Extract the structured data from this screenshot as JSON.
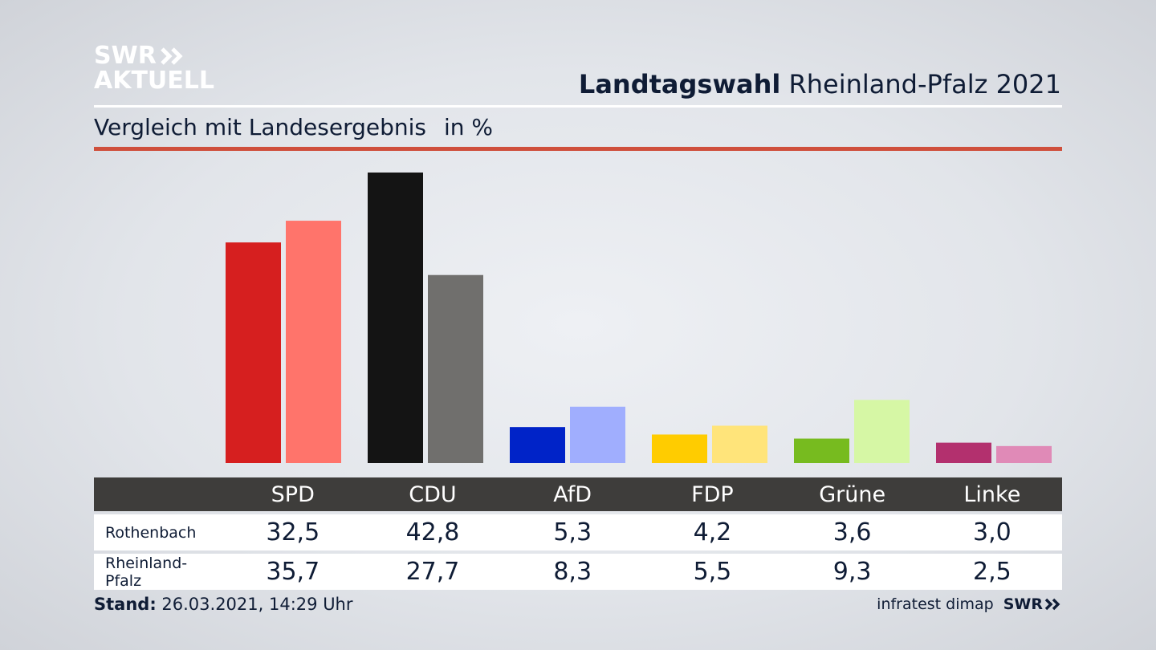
{
  "logo": {
    "line1": "SWR",
    "line2": "AKTUELL"
  },
  "header": {
    "title_bold": "Landtagswahl",
    "title_rest": "Rheinland-Pfalz 2021"
  },
  "subtitle": {
    "text": "Vergleich mit Landesergebnis",
    "unit": "in %"
  },
  "colors": {
    "accent_rule": "#cf4f3c",
    "table_header": "#3e3d3b",
    "Rothenbach": [
      "#d61f1f",
      "#141414",
      "#0023c8",
      "#ffcc00",
      "#77bb1f",
      "#b3306e"
    ],
    "Rheinland-Pfalz": [
      "#ff746b",
      "#706f6d",
      "#a0aefe",
      "#ffe47a",
      "#d6f7a5",
      "#e08ab7"
    ]
  },
  "chart_data": {
    "type": "bar",
    "categories": [
      "SPD",
      "CDU",
      "AfD",
      "FDP",
      "Grüne",
      "Linke"
    ],
    "series": [
      {
        "name": "Rothenbach",
        "values": [
          32.5,
          42.8,
          5.3,
          4.2,
          3.6,
          3.0
        ]
      },
      {
        "name": "Rheinland-Pfalz",
        "values": [
          35.7,
          27.7,
          8.3,
          5.5,
          9.3,
          2.5
        ]
      }
    ],
    "ylim": [
      0,
      42.8
    ],
    "grid": false,
    "legend": "table-below"
  },
  "table": {
    "headers": [
      "SPD",
      "CDU",
      "AfD",
      "FDP",
      "Grüne",
      "Linke"
    ],
    "rows": [
      {
        "label": "Rothenbach",
        "values": [
          "32,5",
          "42,8",
          "5,3",
          "4,2",
          "3,6",
          "3,0"
        ]
      },
      {
        "label": "Rheinland-Pfalz",
        "values": [
          "35,7",
          "27,7",
          "8,3",
          "5,5",
          "9,3",
          "2,5"
        ]
      }
    ]
  },
  "footer": {
    "stand_label": "Stand:",
    "stand_value": "26.03.2021, 14:29 Uhr",
    "source": "infratest dimap",
    "logo": "SWR"
  }
}
